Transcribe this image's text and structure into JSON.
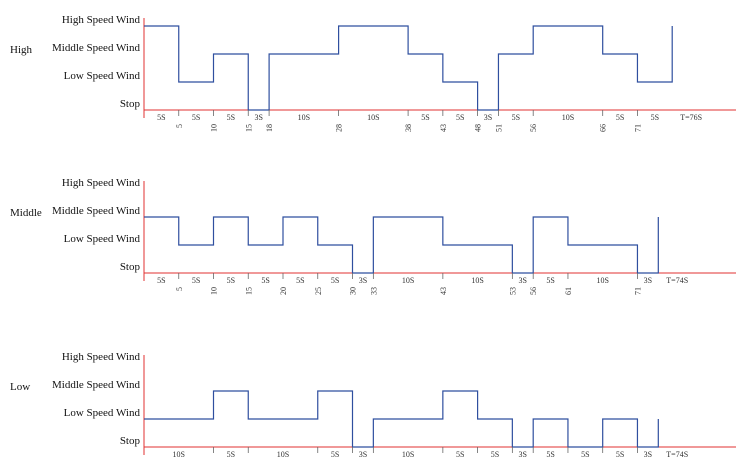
{
  "levels": [
    "Stop",
    "Low Speed Wind",
    "Middle Speed Wind",
    "High Speed Wind"
  ],
  "panels": [
    {
      "mode": "High",
      "waveform": [
        {
          "t0": 0,
          "t1": 5,
          "level": 3
        },
        {
          "t0": 5,
          "t1": 10,
          "level": 1
        },
        {
          "t0": 10,
          "t1": 15,
          "level": 2
        },
        {
          "t0": 15,
          "t1": 18,
          "level": 0
        },
        {
          "t0": 18,
          "t1": 28,
          "level": 2
        },
        {
          "t0": 28,
          "t1": 38,
          "level": 3
        },
        {
          "t0": 38,
          "t1": 43,
          "level": 2
        },
        {
          "t0": 43,
          "t1": 48,
          "level": 1
        },
        {
          "t0": 48,
          "t1": 51,
          "level": 0
        },
        {
          "t0": 51,
          "t1": 56,
          "level": 2
        },
        {
          "t0": 56,
          "t1": 66,
          "level": 3
        },
        {
          "t0": 66,
          "t1": 71,
          "level": 2
        },
        {
          "t0": 71,
          "t1": 76,
          "level": 1
        }
      ],
      "end_level": 3,
      "segment_labels": [
        "5S",
        "5S",
        "5S",
        "3S",
        "10S",
        "10S",
        "5S",
        "5S",
        "3S",
        "5S",
        "10S",
        "5S",
        "5S"
      ],
      "boundary_ticks": [
        "5",
        "10",
        "15",
        "18",
        "28",
        "38",
        "43",
        "48",
        "51",
        "56",
        "66",
        "71"
      ],
      "total": "T=76S"
    },
    {
      "mode": "Middle",
      "waveform": [
        {
          "t0": 0,
          "t1": 5,
          "level": 2
        },
        {
          "t0": 5,
          "t1": 10,
          "level": 1
        },
        {
          "t0": 10,
          "t1": 15,
          "level": 2
        },
        {
          "t0": 15,
          "t1": 20,
          "level": 1
        },
        {
          "t0": 20,
          "t1": 25,
          "level": 2
        },
        {
          "t0": 25,
          "t1": 30,
          "level": 1
        },
        {
          "t0": 30,
          "t1": 33,
          "level": 0
        },
        {
          "t0": 33,
          "t1": 43,
          "level": 2
        },
        {
          "t0": 43,
          "t1": 53,
          "level": 1
        },
        {
          "t0": 53,
          "t1": 56,
          "level": 0
        },
        {
          "t0": 56,
          "t1": 61,
          "level": 2
        },
        {
          "t0": 61,
          "t1": 71,
          "level": 1
        },
        {
          "t0": 71,
          "t1": 74,
          "level": 0
        }
      ],
      "end_level": 2,
      "segment_labels": [
        "5S",
        "5S",
        "5S",
        "5S",
        "5S",
        "5S",
        "3S",
        "10S",
        "10S",
        "3S",
        "5S",
        "10S",
        "3S"
      ],
      "boundary_ticks": [
        "5",
        "10",
        "15",
        "20",
        "25",
        "30",
        "33",
        "43",
        "53",
        "56",
        "61",
        "71"
      ],
      "total": "T=74S"
    },
    {
      "mode": "Low",
      "waveform": [
        {
          "t0": 0,
          "t1": 10,
          "level": 1
        },
        {
          "t0": 10,
          "t1": 15,
          "level": 2
        },
        {
          "t0": 15,
          "t1": 25,
          "level": 1
        },
        {
          "t0": 25,
          "t1": 30,
          "level": 2
        },
        {
          "t0": 30,
          "t1": 33,
          "level": 0
        },
        {
          "t0": 33,
          "t1": 43,
          "level": 1
        },
        {
          "t0": 43,
          "t1": 48,
          "level": 2
        },
        {
          "t0": 48,
          "t1": 53,
          "level": 1
        },
        {
          "t0": 53,
          "t1": 56,
          "level": 0
        },
        {
          "t0": 56,
          "t1": 61,
          "level": 1
        },
        {
          "t0": 61,
          "t1": 66,
          "level": 0
        },
        {
          "t0": 66,
          "t1": 71,
          "level": 1
        },
        {
          "t0": 71,
          "t1": 74,
          "level": 0
        }
      ],
      "end_level": 1,
      "segment_labels": [
        "10S",
        "5S",
        "10S",
        "5S",
        "3S",
        "10S",
        "5S",
        "5S",
        "3S",
        "5S",
        "5S",
        "5S",
        "3S"
      ],
      "total": "T=74S"
    }
  ]
}
